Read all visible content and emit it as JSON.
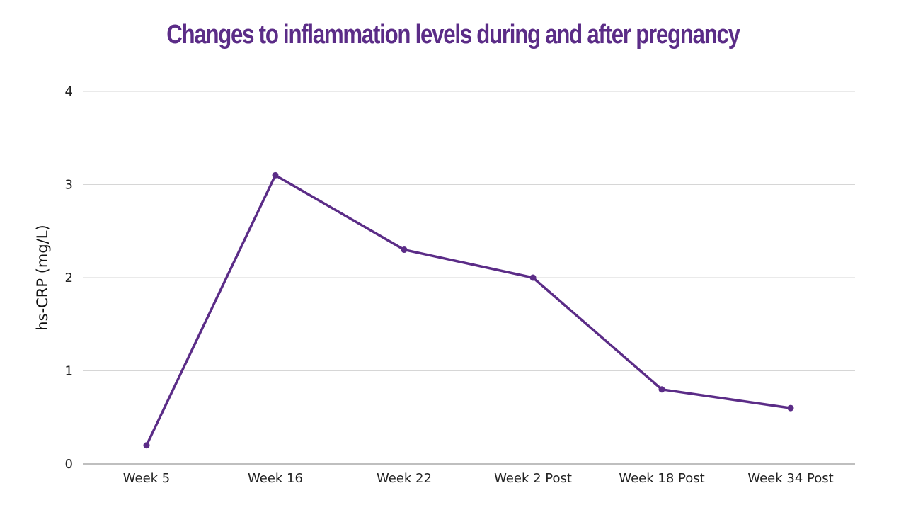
{
  "chart_data": {
    "type": "line",
    "title": "Changes to inflammation levels during and after pregnancy",
    "xlabel": "",
    "ylabel": "hs-CRP (mg/L)",
    "categories": [
      "Week 5",
      "Week 16",
      "Week 22",
      "Week 2 Post",
      "Week 18 Post",
      "Week 34 Post"
    ],
    "series": [
      {
        "name": "hs-CRP",
        "values": [
          0.2,
          3.1,
          2.3,
          2.0,
          0.8,
          0.6
        ]
      }
    ],
    "ylim": [
      0,
      4
    ],
    "yticks": [
      "0",
      "1",
      "2",
      "3",
      "4"
    ],
    "grid": true,
    "legend": "none"
  },
  "colors": {
    "accent": "#5b2c87",
    "line": "#5b2c87",
    "grid": "#d6d6d6",
    "axis": "#999999"
  }
}
